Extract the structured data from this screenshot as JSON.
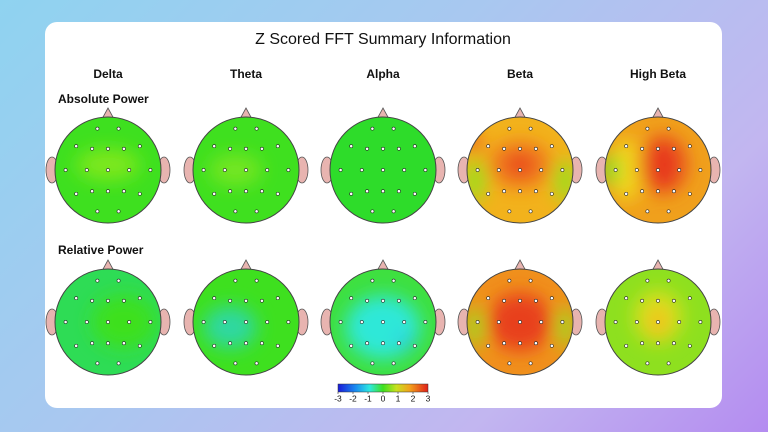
{
  "title": "Z Scored FFT Summary Information",
  "bands": [
    "Delta",
    "Theta",
    "Alpha",
    "Beta",
    "High Beta"
  ],
  "rows": [
    "Absolute Power",
    "Relative Power"
  ],
  "colorbar": {
    "lim": [
      -3,
      3
    ],
    "ticks": [
      -3,
      -2,
      -1,
      0,
      1,
      2,
      3
    ]
  }
}
